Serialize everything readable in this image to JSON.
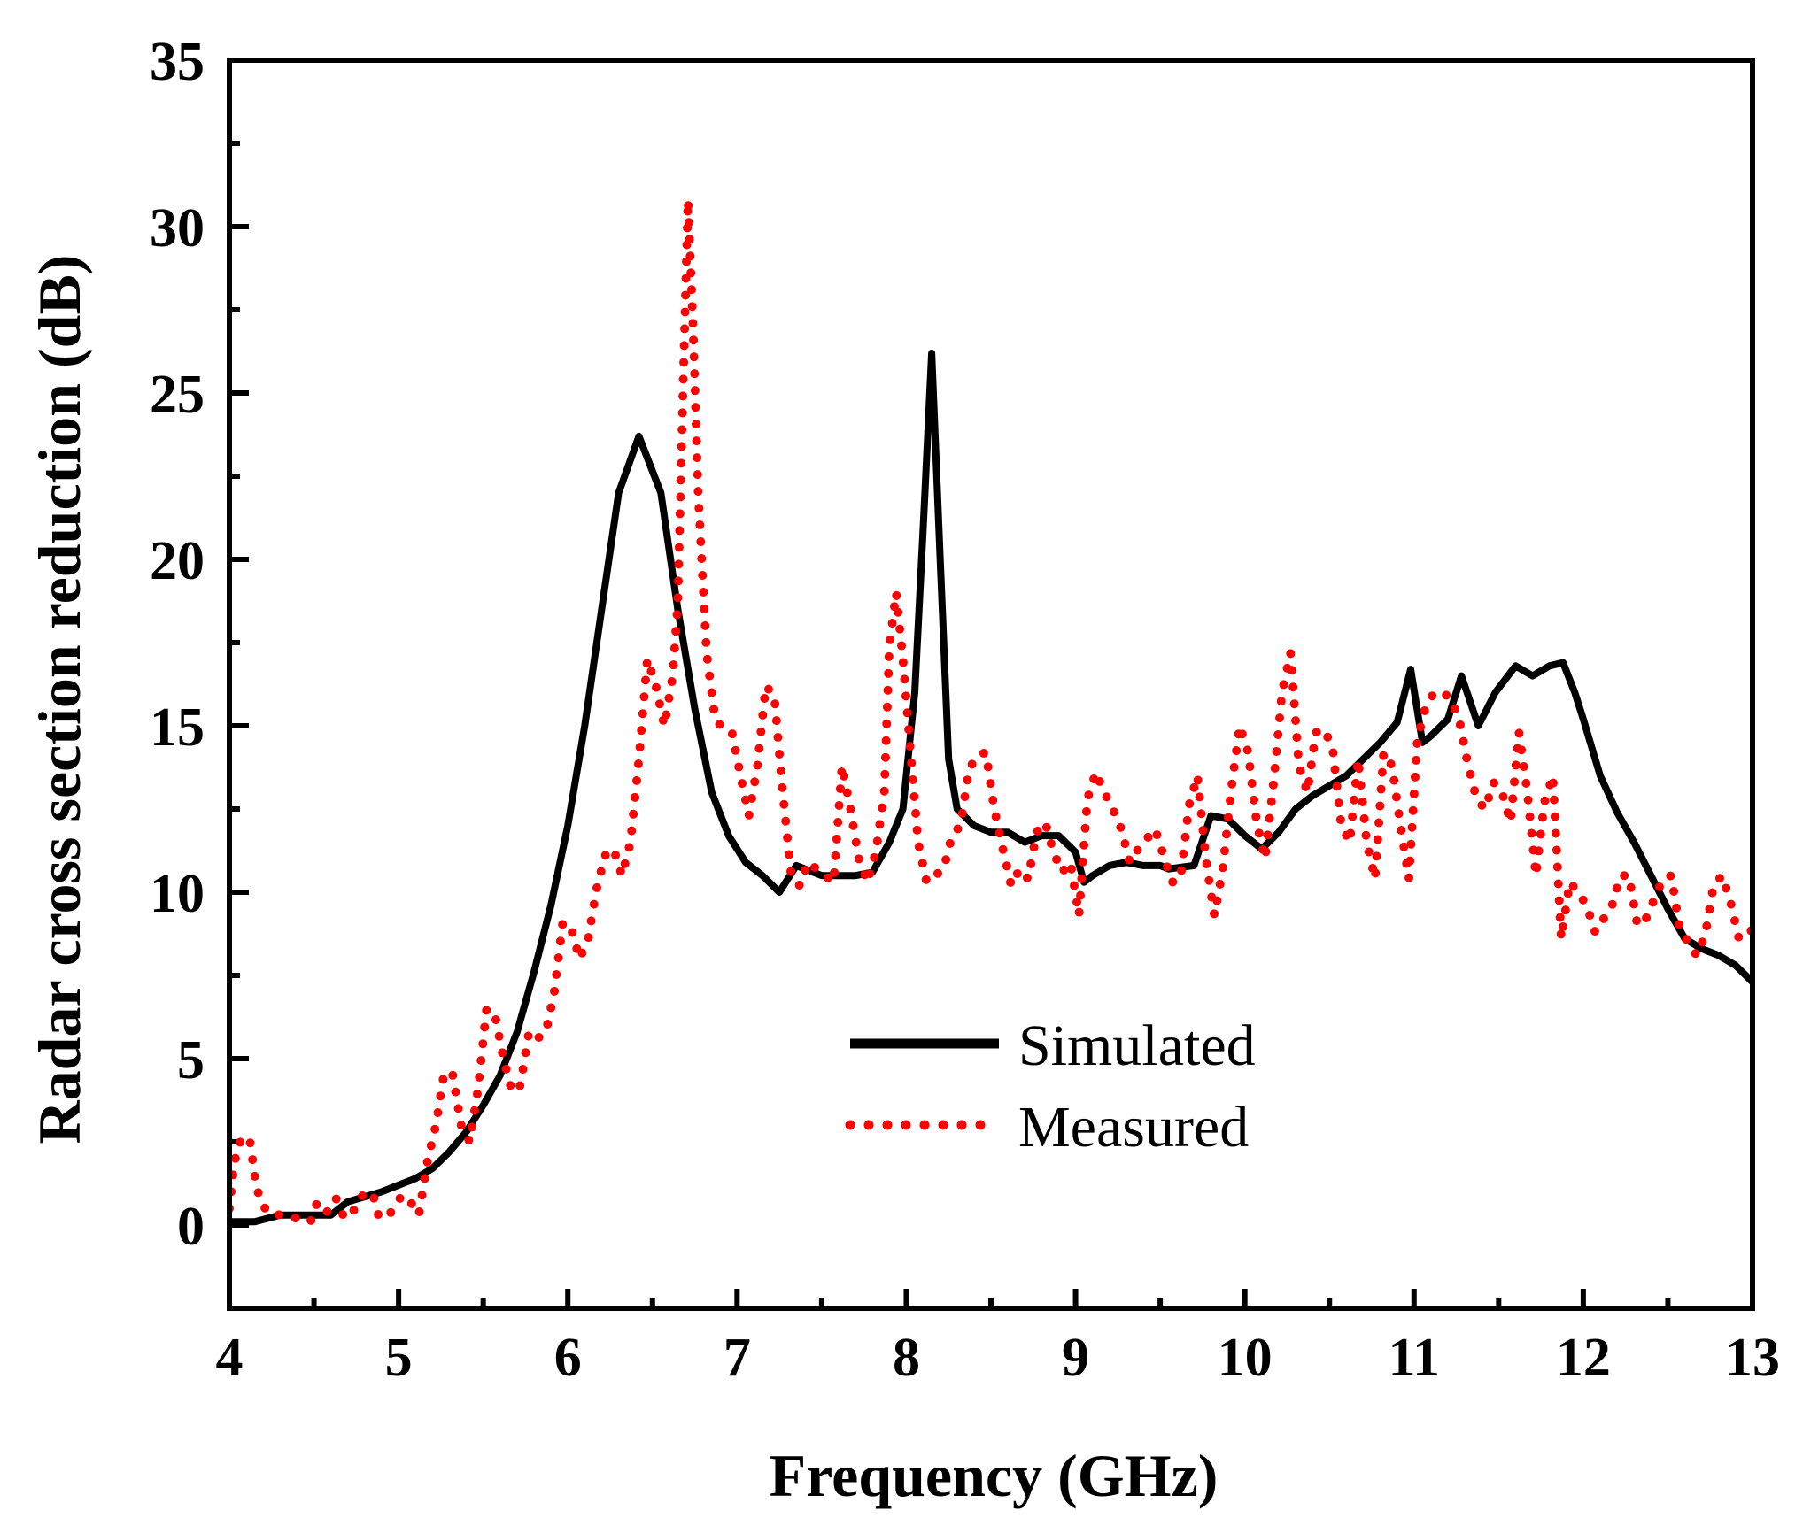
{
  "chart_data": {
    "type": "line",
    "title": "",
    "xlabel": "Frequency (GHz)",
    "ylabel": "Radar cross section reduction (dB)",
    "xlim": [
      4,
      13
    ],
    "ylim": [
      -2.5,
      35
    ],
    "x_ticks": [
      4,
      5,
      6,
      7,
      8,
      9,
      10,
      11,
      12,
      13
    ],
    "y_ticks": [
      0,
      5,
      10,
      15,
      20,
      25,
      30,
      35
    ],
    "x_minor_step": 0.5,
    "y_minor_step": 2.5,
    "grid": false,
    "legend_position": "center",
    "series": [
      {
        "name": "Simulated",
        "color": "#000000",
        "style": "solid",
        "points": [
          [
            4.0,
            0.1
          ],
          [
            4.15,
            0.1
          ],
          [
            4.3,
            0.3
          ],
          [
            4.5,
            0.3
          ],
          [
            4.6,
            0.3
          ],
          [
            4.7,
            0.7
          ],
          [
            4.9,
            1.0
          ],
          [
            5.1,
            1.4
          ],
          [
            5.2,
            1.7
          ],
          [
            5.3,
            2.2
          ],
          [
            5.4,
            2.8
          ],
          [
            5.5,
            3.6
          ],
          [
            5.6,
            4.5
          ],
          [
            5.7,
            5.8
          ],
          [
            5.8,
            7.6
          ],
          [
            5.9,
            9.6
          ],
          [
            6.0,
            12.0
          ],
          [
            6.1,
            15.0
          ],
          [
            6.2,
            18.5
          ],
          [
            6.3,
            22.0
          ],
          [
            6.42,
            23.7
          ],
          [
            6.55,
            22.0
          ],
          [
            6.65,
            18.5
          ],
          [
            6.75,
            15.5
          ],
          [
            6.85,
            13.0
          ],
          [
            6.95,
            11.7
          ],
          [
            7.05,
            10.9
          ],
          [
            7.15,
            10.5
          ],
          [
            7.25,
            10.0
          ],
          [
            7.35,
            10.8
          ],
          [
            7.5,
            10.5
          ],
          [
            7.7,
            10.5
          ],
          [
            7.8,
            10.6
          ],
          [
            7.9,
            11.5
          ],
          [
            7.98,
            12.5
          ],
          [
            8.05,
            16.0
          ],
          [
            8.1,
            21.0
          ],
          [
            8.15,
            26.2
          ],
          [
            8.2,
            20.0
          ],
          [
            8.25,
            14.0
          ],
          [
            8.3,
            12.5
          ],
          [
            8.4,
            12.0
          ],
          [
            8.5,
            11.8
          ],
          [
            8.6,
            11.8
          ],
          [
            8.7,
            11.5
          ],
          [
            8.8,
            11.7
          ],
          [
            8.9,
            11.7
          ],
          [
            9.0,
            11.2
          ],
          [
            9.05,
            10.3
          ],
          [
            9.1,
            10.5
          ],
          [
            9.2,
            10.8
          ],
          [
            9.3,
            10.9
          ],
          [
            9.4,
            10.8
          ],
          [
            9.5,
            10.8
          ],
          [
            9.55,
            10.7
          ],
          [
            9.7,
            10.8
          ],
          [
            9.8,
            12.3
          ],
          [
            9.9,
            12.2
          ],
          [
            10.0,
            11.7
          ],
          [
            10.1,
            11.3
          ],
          [
            10.2,
            11.8
          ],
          [
            10.3,
            12.5
          ],
          [
            10.4,
            12.9
          ],
          [
            10.5,
            13.2
          ],
          [
            10.6,
            13.5
          ],
          [
            10.7,
            14.0
          ],
          [
            10.8,
            14.5
          ],
          [
            10.9,
            15.1
          ],
          [
            10.98,
            16.7
          ],
          [
            11.05,
            14.5
          ],
          [
            11.1,
            14.7
          ],
          [
            11.2,
            15.2
          ],
          [
            11.28,
            16.5
          ],
          [
            11.38,
            15.0
          ],
          [
            11.48,
            16.0
          ],
          [
            11.6,
            16.8
          ],
          [
            11.7,
            16.5
          ],
          [
            11.8,
            16.8
          ],
          [
            11.88,
            16.9
          ],
          [
            11.95,
            16.0
          ],
          [
            12.0,
            15.2
          ],
          [
            12.1,
            13.5
          ],
          [
            12.2,
            12.4
          ],
          [
            12.3,
            11.5
          ],
          [
            12.4,
            10.5
          ],
          [
            12.5,
            9.5
          ],
          [
            12.6,
            8.6
          ],
          [
            12.7,
            8.3
          ],
          [
            12.8,
            8.1
          ],
          [
            12.9,
            7.8
          ],
          [
            13.0,
            7.3
          ]
        ]
      },
      {
        "name": "Measured",
        "color": "#ff0000",
        "style": "dotted",
        "points": [
          [
            4.0,
            0.5
          ],
          [
            4.03,
            1.9
          ],
          [
            4.07,
            2.6
          ],
          [
            4.12,
            2.6
          ],
          [
            4.16,
            1.1
          ],
          [
            4.22,
            0.4
          ],
          [
            4.3,
            0.3
          ],
          [
            4.4,
            0.2
          ],
          [
            4.48,
            0.1
          ],
          [
            4.52,
            0.7
          ],
          [
            4.58,
            0.4
          ],
          [
            4.63,
            0.8
          ],
          [
            4.68,
            0.2
          ],
          [
            4.73,
            0.4
          ],
          [
            4.8,
            1.0
          ],
          [
            4.85,
            0.9
          ],
          [
            4.88,
            0.3
          ],
          [
            4.93,
            0.2
          ],
          [
            4.97,
            0.5
          ],
          [
            5.02,
            0.9
          ],
          [
            5.07,
            0.7
          ],
          [
            5.12,
            0.3
          ],
          [
            5.17,
            1.9
          ],
          [
            5.22,
            3.0
          ],
          [
            5.27,
            4.6
          ],
          [
            5.32,
            4.5
          ],
          [
            5.37,
            3.0
          ],
          [
            5.42,
            2.5
          ],
          [
            5.47,
            4.1
          ],
          [
            5.52,
            6.5
          ],
          [
            5.57,
            6.3
          ],
          [
            5.62,
            5.0
          ],
          [
            5.67,
            4.0
          ],
          [
            5.72,
            4.2
          ],
          [
            5.77,
            5.8
          ],
          [
            5.82,
            5.6
          ],
          [
            5.87,
            5.8
          ],
          [
            5.92,
            7.0
          ],
          [
            5.97,
            9.1
          ],
          [
            6.02,
            8.9
          ],
          [
            6.07,
            8.0
          ],
          [
            6.12,
            8.6
          ],
          [
            6.17,
            10.1
          ],
          [
            6.22,
            11.1
          ],
          [
            6.27,
            11.3
          ],
          [
            6.32,
            10.5
          ],
          [
            6.37,
            11.5
          ],
          [
            6.42,
            14.0
          ],
          [
            6.47,
            17.0
          ],
          [
            6.52,
            16.2
          ],
          [
            6.57,
            15.0
          ],
          [
            6.62,
            16.5
          ],
          [
            6.65,
            18.7
          ],
          [
            6.68,
            25.0
          ],
          [
            6.71,
            30.8
          ],
          [
            6.74,
            27.0
          ],
          [
            6.77,
            22.0
          ],
          [
            6.82,
            17.2
          ],
          [
            6.87,
            15.2
          ],
          [
            6.92,
            14.9
          ],
          [
            6.97,
            14.8
          ],
          [
            7.02,
            13.5
          ],
          [
            7.07,
            12.3
          ],
          [
            7.12,
            13.8
          ],
          [
            7.17,
            16.2
          ],
          [
            7.22,
            15.9
          ],
          [
            7.27,
            13.0
          ],
          [
            7.32,
            10.5
          ],
          [
            7.37,
            10.2
          ],
          [
            7.42,
            10.9
          ],
          [
            7.47,
            10.7
          ],
          [
            7.52,
            10.5
          ],
          [
            7.57,
            10.3
          ],
          [
            7.62,
            13.8
          ],
          [
            7.67,
            12.5
          ],
          [
            7.72,
            11.0
          ],
          [
            7.77,
            10.3
          ],
          [
            7.82,
            11.2
          ],
          [
            7.87,
            13.0
          ],
          [
            7.9,
            17.4
          ],
          [
            7.94,
            19.0
          ],
          [
            7.98,
            17.0
          ],
          [
            8.02,
            14.5
          ],
          [
            8.07,
            11.5
          ],
          [
            8.12,
            10.3
          ],
          [
            8.17,
            10.5
          ],
          [
            8.22,
            10.7
          ],
          [
            8.27,
            11.7
          ],
          [
            8.32,
            12.0
          ],
          [
            8.37,
            13.7
          ],
          [
            8.42,
            14.1
          ],
          [
            8.47,
            14.2
          ],
          [
            8.52,
            12.5
          ],
          [
            8.57,
            11.3
          ],
          [
            8.62,
            10.2
          ],
          [
            8.67,
            10.7
          ],
          [
            8.72,
            10.4
          ],
          [
            8.77,
            11.8
          ],
          [
            8.82,
            12.1
          ],
          [
            8.87,
            11.2
          ],
          [
            8.92,
            10.6
          ],
          [
            8.97,
            10.9
          ],
          [
            9.02,
            9.3
          ],
          [
            9.07,
            12.8
          ],
          [
            9.12,
            13.6
          ],
          [
            9.17,
            13.0
          ],
          [
            9.22,
            12.5
          ],
          [
            9.27,
            11.9
          ],
          [
            9.32,
            10.9
          ],
          [
            9.37,
            11.3
          ],
          [
            9.42,
            11.6
          ],
          [
            9.47,
            11.9
          ],
          [
            9.52,
            11.1
          ],
          [
            9.57,
            10.3
          ],
          [
            9.62,
            10.4
          ],
          [
            9.67,
            12.6
          ],
          [
            9.72,
            13.5
          ],
          [
            9.77,
            11.0
          ],
          [
            9.82,
            9.3
          ],
          [
            9.87,
            10.7
          ],
          [
            9.92,
            13.1
          ],
          [
            9.97,
            15.0
          ],
          [
            10.02,
            14.2
          ],
          [
            10.07,
            12.1
          ],
          [
            10.12,
            11.0
          ],
          [
            10.17,
            13.3
          ],
          [
            10.22,
            16.0
          ],
          [
            10.27,
            17.2
          ],
          [
            10.32,
            13.8
          ],
          [
            10.37,
            13.0
          ],
          [
            10.42,
            14.8
          ],
          [
            10.47,
            14.9
          ],
          [
            10.52,
            14.3
          ],
          [
            10.57,
            12.0
          ],
          [
            10.62,
            11.5
          ],
          [
            10.67,
            14.0
          ],
          [
            10.72,
            11.5
          ],
          [
            10.77,
            10.4
          ],
          [
            10.82,
            14.2
          ],
          [
            10.87,
            13.8
          ],
          [
            10.92,
            12.0
          ],
          [
            10.97,
            10.4
          ],
          [
            11.02,
            14.6
          ],
          [
            11.07,
            15.6
          ],
          [
            11.12,
            16.0
          ],
          [
            11.17,
            16.0
          ],
          [
            11.22,
            15.8
          ],
          [
            11.27,
            15.1
          ],
          [
            11.32,
            13.8
          ],
          [
            11.37,
            12.8
          ],
          [
            11.42,
            12.5
          ],
          [
            11.47,
            13.3
          ],
          [
            11.52,
            13.0
          ],
          [
            11.57,
            12.1
          ],
          [
            11.62,
            14.8
          ],
          [
            11.67,
            13.0
          ],
          [
            11.72,
            10.5
          ],
          [
            11.77,
            12.7
          ],
          [
            11.82,
            13.5
          ],
          [
            11.87,
            8.6
          ],
          [
            11.92,
            10.3
          ],
          [
            11.97,
            10.0
          ],
          [
            12.02,
            9.6
          ],
          [
            12.07,
            8.8
          ],
          [
            12.12,
            9.2
          ],
          [
            12.17,
            9.6
          ],
          [
            12.22,
            10.5
          ],
          [
            12.27,
            10.5
          ],
          [
            12.32,
            9.0
          ],
          [
            12.37,
            9.2
          ],
          [
            12.42,
            9.8
          ],
          [
            12.47,
            10.4
          ],
          [
            12.52,
            10.5
          ],
          [
            12.57,
            8.9
          ],
          [
            12.62,
            8.5
          ],
          [
            12.67,
            8.1
          ],
          [
            12.72,
            8.7
          ],
          [
            12.77,
            10.2
          ],
          [
            12.82,
            10.5
          ],
          [
            12.87,
            9.7
          ],
          [
            12.92,
            8.6
          ],
          [
            12.97,
            8.7
          ],
          [
            13.0,
            8.9
          ]
        ]
      }
    ]
  },
  "legend": {
    "simulated_label": "Simulated",
    "measured_label": "Measured"
  }
}
